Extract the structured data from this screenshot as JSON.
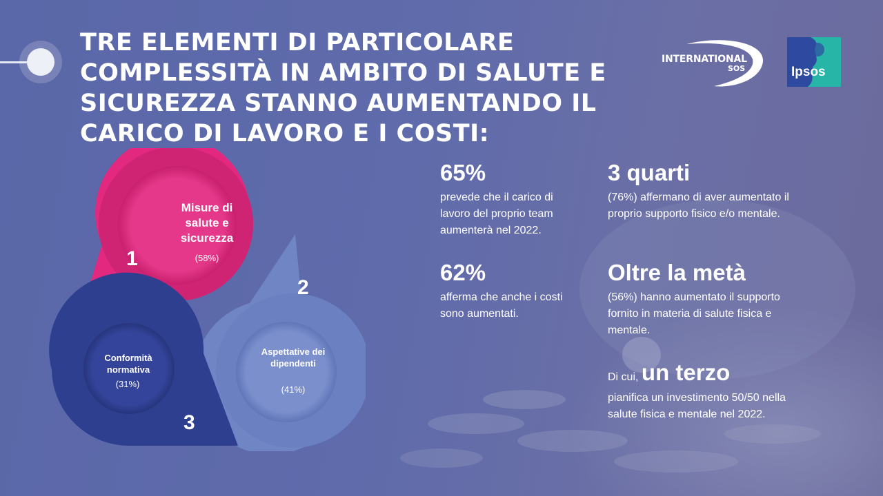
{
  "title": "TRE ELEMENTI DI PARTICOLARE COMPLESSITÀ IN AMBITO DI SALUTE E SICUREZZA STANNO AUMENTANDO IL CARICO DI LAVORO E I COSTI:",
  "logos": {
    "international_sos": {
      "line1": "INTERNATIONAL",
      "line2": "SOS"
    },
    "ipsos": "Ipsos"
  },
  "diagram": {
    "items": [
      {
        "number": "1",
        "label": "Misure di salute e sicurezza",
        "percent": "(58%)",
        "value": 58,
        "color": "#e2297f"
      },
      {
        "number": "2",
        "label": "Aspettative dei dipendenti",
        "percent": "(41%)",
        "value": 41,
        "color": "#6f86c6"
      },
      {
        "number": "3",
        "label": "Conformità normativa",
        "percent": "(31%)",
        "value": 31,
        "color": "#2f3f90"
      }
    ]
  },
  "stats": [
    {
      "headline": "65%",
      "text": "prevede che il carico di lavoro del proprio team aumenterà nel 2022."
    },
    {
      "headline": "3 quarti",
      "text": "(76%) affermano di aver aumentato il proprio supporto fisico e/o mentale."
    },
    {
      "headline": "62%",
      "text": "afferma che anche i costi sono aumentati."
    },
    {
      "headline": "Oltre la metà",
      "text": "(56%) hanno aumentato il supporto fornito in materia di salute fisica e mentale."
    },
    {
      "prefix": "Di cui, ",
      "headline": "un terzo",
      "text": "pianifica un investimento 50/50 nella salute fisica e mentale nel 2022."
    }
  ],
  "colors": {
    "background": "#5f6bab",
    "pink": "#e2297f",
    "light_blue": "#6f86c6",
    "dark_blue": "#2f3f90"
  }
}
